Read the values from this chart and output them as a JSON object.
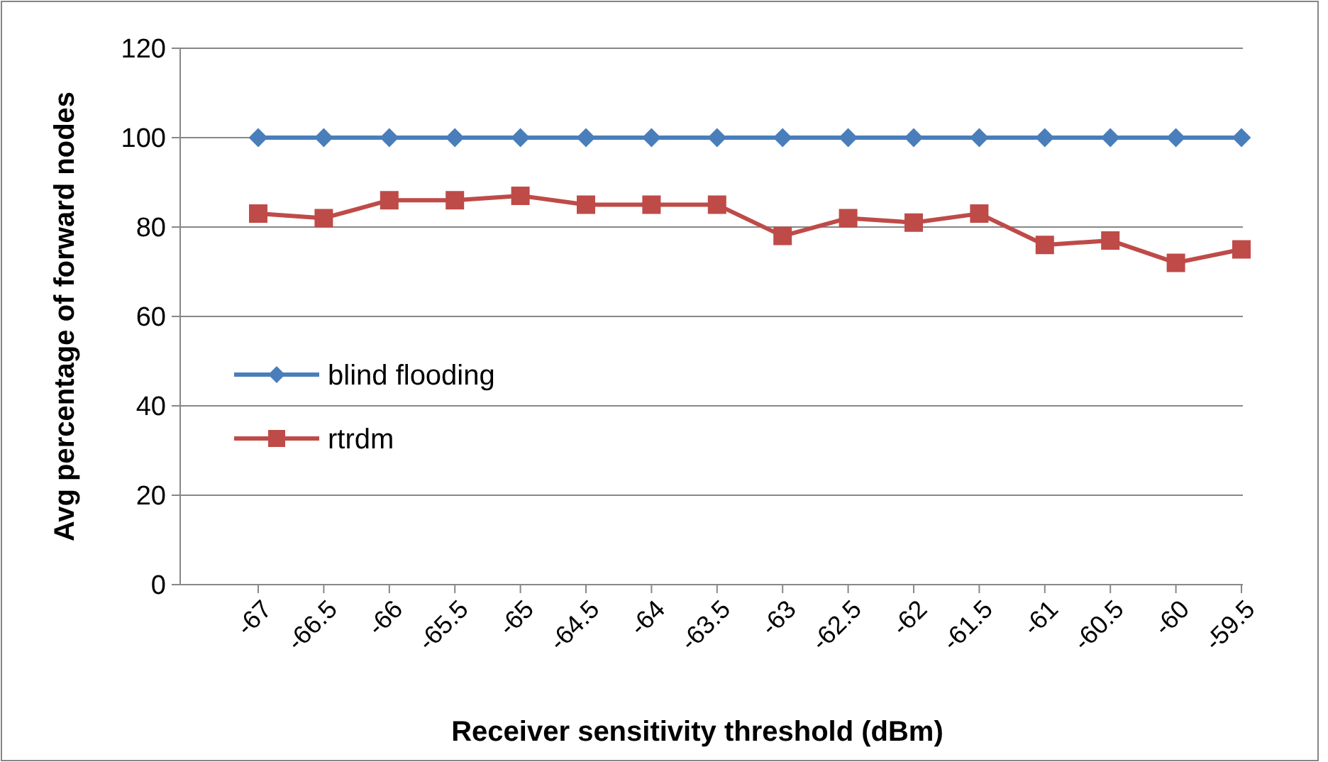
{
  "chart_data": {
    "type": "line",
    "xlabel": "Receiver sensitivity threshold (dBm)",
    "ylabel": "Avg percentage of forward nodes",
    "categories": [
      "-67",
      "-66.5",
      "-66",
      "-65.5",
      "-65",
      "-64.5",
      "-64",
      "-63.5",
      "-63",
      "-62.5",
      "-62",
      "-61.5",
      "-61",
      "-60.5",
      "-60",
      "-59.5"
    ],
    "series": [
      {
        "name": "blind flooding",
        "color": "#4a7ebb",
        "marker": "diamond",
        "values": [
          100,
          100,
          100,
          100,
          100,
          100,
          100,
          100,
          100,
          100,
          100,
          100,
          100,
          100,
          100,
          100
        ]
      },
      {
        "name": "rtrdm",
        "color": "#be4b48",
        "marker": "square",
        "values": [
          83,
          82,
          86,
          86,
          87,
          85,
          85,
          85,
          78,
          82,
          81,
          83,
          76,
          77,
          72,
          75
        ]
      }
    ],
    "ylim": [
      0,
      120
    ],
    "yticks": [
      0,
      20,
      40,
      60,
      80,
      100,
      120
    ],
    "grid": "y",
    "legend": "left"
  }
}
